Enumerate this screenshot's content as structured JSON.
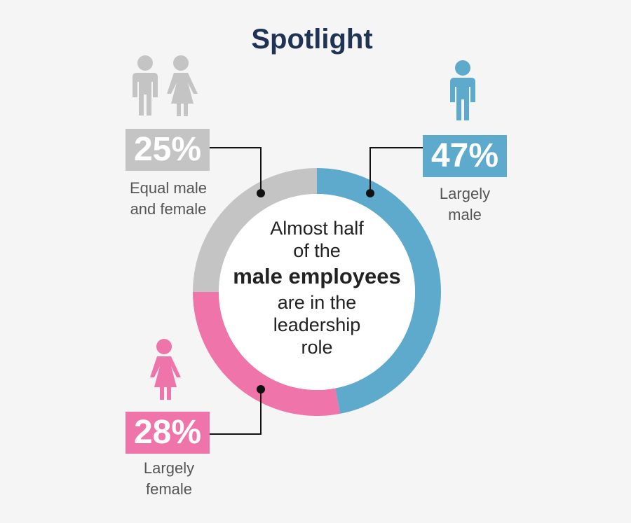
{
  "title": "Spotlight",
  "chart_data": {
    "type": "pie",
    "donut": true,
    "categories": [
      "Largely male",
      "Largely female",
      "Equal male and female"
    ],
    "values": [
      47,
      28,
      25
    ],
    "colors": [
      "#5eaacd",
      "#ef74aa",
      "#c4c4c4"
    ],
    "labels": [
      "47%",
      "28%",
      "25%"
    ]
  },
  "segments": [
    {
      "value": "25%",
      "caption_lines": [
        "Equal male",
        "and female"
      ],
      "color": "#c4c4c4"
    },
    {
      "value": "47%",
      "caption_lines": [
        "Largely",
        "male"
      ],
      "color": "#5eaacd"
    },
    {
      "value": "28%",
      "caption_lines": [
        "Largely",
        "female"
      ],
      "color": "#ef74aa"
    }
  ],
  "center": {
    "line1": "Almost half",
    "line2": "of the",
    "line3": "male employees",
    "line4": "are in the",
    "line5": "leadership",
    "line6": "role"
  },
  "icons": {
    "equal": "man-and-woman-icon",
    "male": "man-icon",
    "female": "woman-icon"
  }
}
